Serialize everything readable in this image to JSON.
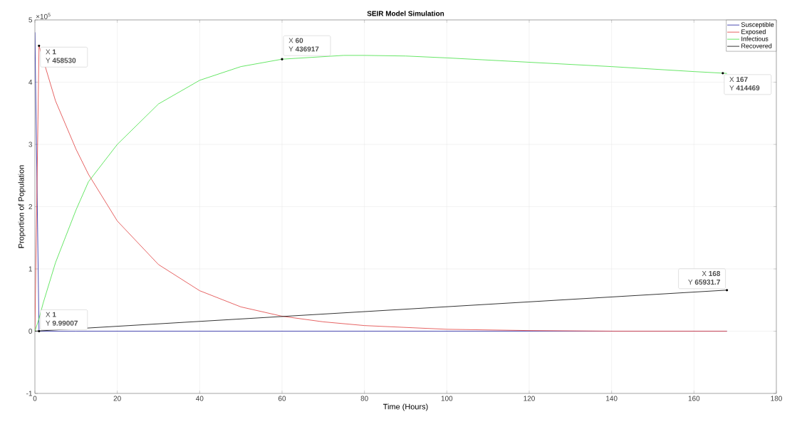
{
  "chart_data": {
    "type": "line",
    "title": "SEIR Model Simulation",
    "xlabel": "Time (Hours)",
    "ylabel": "Proportion of Population",
    "xlim": [
      0,
      180
    ],
    "xticks": [
      0,
      20,
      40,
      60,
      80,
      100,
      120,
      140,
      160,
      180
    ],
    "ylim": [
      -1,
      5
    ],
    "yticks": [
      -1,
      0,
      1,
      2,
      3,
      4,
      5
    ],
    "grid": true,
    "legend": "top right",
    "marker": "none",
    "line_style": "solid",
    "series": [
      {
        "name": "Susceptible",
        "color": "#2020a0",
        "x": [
          0,
          1,
          10,
          40,
          80,
          120,
          168
        ],
        "values": [
          4.8,
          9.99007e-05,
          0,
          0,
          0,
          0,
          0
        ]
      },
      {
        "name": "Exposed",
        "color": "#e03c3c",
        "x": [
          0,
          1,
          5,
          10,
          13,
          20,
          30,
          40,
          50,
          60,
          70,
          80,
          100,
          120,
          140,
          168
        ],
        "values": [
          0,
          4.5853,
          3.7,
          2.92,
          2.52,
          1.77,
          1.07,
          0.65,
          0.39,
          0.24,
          0.15,
          0.09,
          0.03,
          0.01,
          0,
          0
        ]
      },
      {
        "name": "Infectious",
        "color": "#40e040",
        "x": [
          0,
          1,
          2,
          5,
          10,
          13,
          20,
          30,
          40,
          50,
          60,
          75,
          80,
          90,
          100,
          120,
          140,
          160,
          167,
          168
        ],
        "values": [
          0,
          0.2,
          0.45,
          1.1,
          1.95,
          2.4,
          3.0,
          3.65,
          4.03,
          4.25,
          4.36917,
          4.43,
          4.43,
          4.42,
          4.39,
          4.32,
          4.25,
          4.17,
          4.14469,
          4.14
        ]
      },
      {
        "name": "Recovered",
        "color": "#000000",
        "x": [
          0,
          168
        ],
        "values": [
          0,
          0.659317
        ]
      }
    ],
    "annotations": [
      "×10$^{5}$",
      {
        "text": "X **1**",
        "x": 1,
        "y": 4.5853
      },
      {
        "text": "Y **458530**",
        "x": 1,
        "y": 4.5853
      },
      {
        "text": "X **1**",
        "x": 1,
        "y": 9.99007e-05
      },
      {
        "text": "Y **9.99007**",
        "x": 1,
        "y": 9.99007e-05
      },
      {
        "text": "X **60**",
        "x": 60,
        "y": 4.36917
      },
      {
        "text": "Y **436917**",
        "x": 60,
        "y": 4.36917
      },
      {
        "text": "X **167**",
        "x": 167,
        "y": 4.14469
      },
      {
        "text": "Y **414469**",
        "x": 167,
        "y": 4.14469
      },
      {
        "text": "X **168**",
        "x": 168,
        "y": 0.659317
      },
      {
        "text": "Y **65931.7**",
        "x": 168,
        "y": 0.659317
      }
    ]
  }
}
